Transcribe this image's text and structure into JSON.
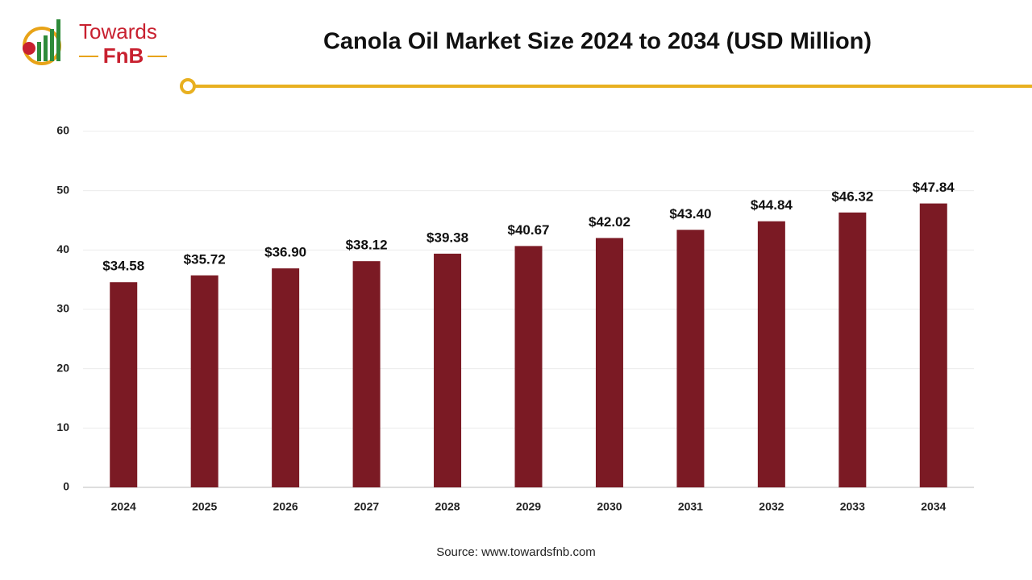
{
  "logo": {
    "line1": "Towards",
    "line2": "FnB"
  },
  "chart_data": {
    "type": "bar",
    "title": "Canola Oil Market Size 2024 to 2034 (USD Million)",
    "categories": [
      "2024",
      "2025",
      "2026",
      "2027",
      "2028",
      "2029",
      "2030",
      "2031",
      "2032",
      "2033",
      "2034"
    ],
    "values": [
      34.58,
      35.72,
      36.9,
      38.12,
      39.38,
      40.67,
      42.02,
      43.4,
      44.84,
      46.32,
      47.84
    ],
    "value_labels": [
      "$34.58",
      "$35.72",
      "$36.90",
      "$38.12",
      "$39.38",
      "$40.67",
      "$42.02",
      "$43.40",
      "$44.84",
      "$46.32",
      "$47.84"
    ],
    "color": "#7b1a24",
    "ylim": [
      0,
      60
    ],
    "yticks": [
      0,
      10,
      20,
      30,
      40,
      50,
      60
    ],
    "grid": true,
    "source": "Source: www.towardsfnb.com"
  }
}
